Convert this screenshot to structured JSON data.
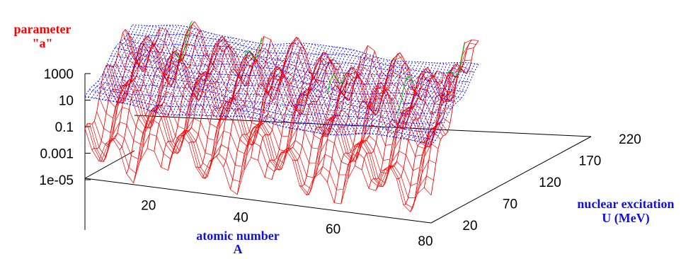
{
  "chart_data": {
    "type": "surface3d",
    "z_label_line1": "parameter",
    "z_label_line2": "\"a\"",
    "x_label_line1": "atomic number",
    "x_label_line2": "A",
    "y_label_line1": "nuclear excitation",
    "y_label_line2": "U (MeV)",
    "z_scale": "log",
    "z_ticks": [
      "1000",
      "10",
      "0.1",
      "0.001",
      "1e-05"
    ],
    "z_tick_values": [
      1000,
      10,
      0.1,
      0.001,
      1e-05
    ],
    "x_ticks": [
      "20",
      "40",
      "60",
      "80"
    ],
    "x_tick_values": [
      20,
      40,
      60,
      80
    ],
    "y_ticks": [
      "20",
      "70",
      "120",
      "170",
      "220"
    ],
    "y_tick_values": [
      20,
      70,
      120,
      170,
      220
    ],
    "x_range": [
      5,
      80
    ],
    "y_range": [
      0,
      220
    ],
    "series": [
      {
        "color": "#ff0000"
      },
      {
        "color": "#0000ff"
      },
      {
        "color": "#00c000"
      }
    ]
  }
}
